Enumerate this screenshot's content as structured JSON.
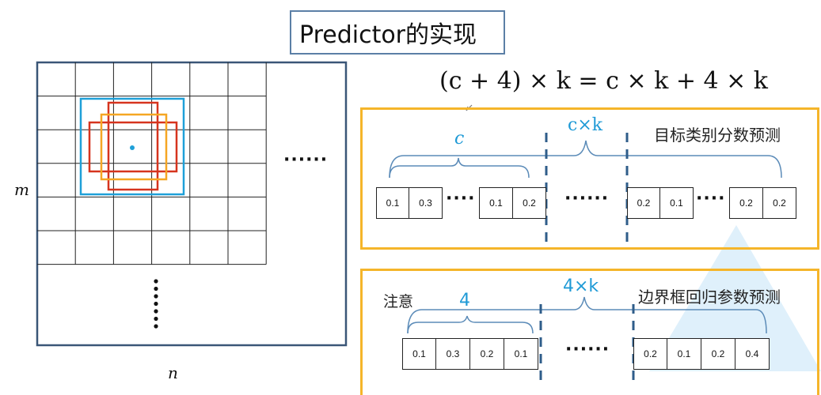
{
  "title": "Predictor的实现",
  "formula": "(c + 4) × k = c × k + 4 × k",
  "grid": {
    "axis_m": "m",
    "axis_n": "n",
    "ellipsis_h": "······",
    "ellipsis_v": "·······"
  },
  "panel_top": {
    "title": "目标类别分数预测",
    "brace_small_label": "c",
    "brace_large_label": "c×k",
    "ellipsis_mid": "······",
    "ellipsis_short": "····",
    "group1": [
      "0.1",
      "0.3"
    ],
    "group2": [
      "0.1",
      "0.2"
    ],
    "group3": [
      "0.2",
      "0.1"
    ],
    "group4": [
      "0.2",
      "0.2"
    ]
  },
  "panel_bottom": {
    "note": "注意",
    "title": "边界框回归参数预测",
    "brace_small_label": "4",
    "brace_large_label": "4×k",
    "ellipsis_mid": "······",
    "group1": [
      "0.1",
      "0.3",
      "0.2",
      "0.1"
    ],
    "group2": [
      "0.2",
      "0.1",
      "0.2",
      "0.4"
    ]
  },
  "colors": {
    "grid_border": "#3a5677",
    "cyan": "#1fa0d8",
    "red": "#d6341e",
    "orange": "#f5a623",
    "panel_border": "#f5b52a",
    "brace_blue": "#5b8bb8",
    "dash_blue": "#2f5d8a"
  }
}
